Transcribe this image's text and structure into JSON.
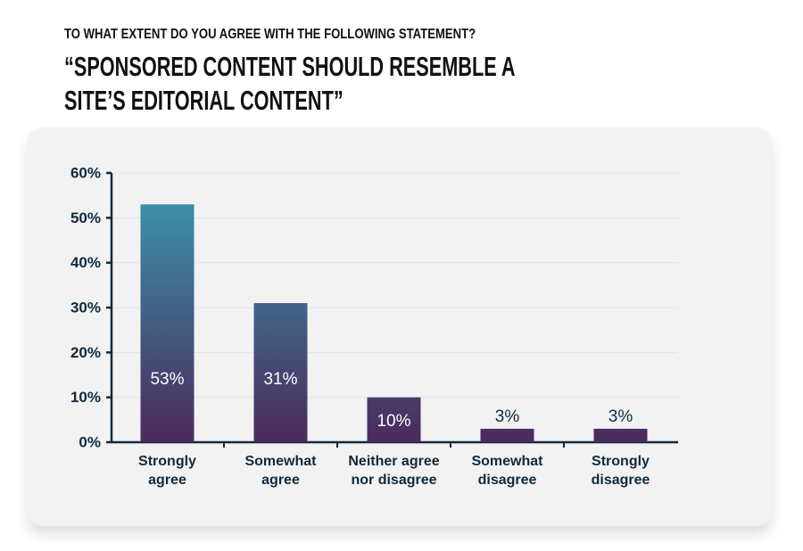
{
  "chart_data": {
    "type": "bar",
    "title": "TO WHAT EXTENT DO YOU AGREE WITH THE FOLLOWING STATEMENT?",
    "subtitle": "“SPONSORED CONTENT SHOULD RESEMBLE A SITE’S EDITORIAL CONTENT”",
    "categories": [
      "Strongly agree",
      "Somewhat agree",
      "Neither agree nor disagree",
      "Somewhat disagree",
      "Strongly disagree"
    ],
    "values": [
      53,
      31,
      10,
      3,
      3
    ],
    "value_labels": [
      "53%",
      "31%",
      "10%",
      "3%",
      "3%"
    ],
    "color": [
      "#3a9bb1",
      "#4b2a5c"
    ],
    "ylim": [
      0,
      60
    ],
    "yticks": [
      {
        "value": 0,
        "label": "0%"
      },
      {
        "value": 10,
        "label": "10%"
      },
      {
        "value": 20,
        "label": "20%"
      },
      {
        "value": 30,
        "label": "30%"
      },
      {
        "value": 40,
        "label": "40%"
      },
      {
        "value": 50,
        "label": "50%"
      },
      {
        "value": 60,
        "label": "60%"
      }
    ],
    "grid": true
  }
}
